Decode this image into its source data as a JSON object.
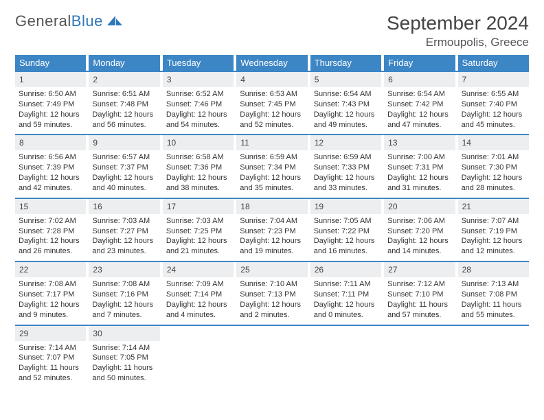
{
  "logo": {
    "text1": "General",
    "text2": "Blue"
  },
  "title": "September 2024",
  "location": "Ermoupolis, Greece",
  "colors": {
    "header_bg": "#3d86c6",
    "header_text": "#ffffff",
    "daynum_bg": "#eceeef",
    "rule": "#3d86c6",
    "logo_blue": "#2f77bb"
  },
  "day_headers": [
    "Sunday",
    "Monday",
    "Tuesday",
    "Wednesday",
    "Thursday",
    "Friday",
    "Saturday"
  ],
  "days": [
    {
      "n": "1",
      "sr": "6:50 AM",
      "ss": "7:49 PM",
      "dl": "12 hours and 59 minutes."
    },
    {
      "n": "2",
      "sr": "6:51 AM",
      "ss": "7:48 PM",
      "dl": "12 hours and 56 minutes."
    },
    {
      "n": "3",
      "sr": "6:52 AM",
      "ss": "7:46 PM",
      "dl": "12 hours and 54 minutes."
    },
    {
      "n": "4",
      "sr": "6:53 AM",
      "ss": "7:45 PM",
      "dl": "12 hours and 52 minutes."
    },
    {
      "n": "5",
      "sr": "6:54 AM",
      "ss": "7:43 PM",
      "dl": "12 hours and 49 minutes."
    },
    {
      "n": "6",
      "sr": "6:54 AM",
      "ss": "7:42 PM",
      "dl": "12 hours and 47 minutes."
    },
    {
      "n": "7",
      "sr": "6:55 AM",
      "ss": "7:40 PM",
      "dl": "12 hours and 45 minutes."
    },
    {
      "n": "8",
      "sr": "6:56 AM",
      "ss": "7:39 PM",
      "dl": "12 hours and 42 minutes."
    },
    {
      "n": "9",
      "sr": "6:57 AM",
      "ss": "7:37 PM",
      "dl": "12 hours and 40 minutes."
    },
    {
      "n": "10",
      "sr": "6:58 AM",
      "ss": "7:36 PM",
      "dl": "12 hours and 38 minutes."
    },
    {
      "n": "11",
      "sr": "6:59 AM",
      "ss": "7:34 PM",
      "dl": "12 hours and 35 minutes."
    },
    {
      "n": "12",
      "sr": "6:59 AM",
      "ss": "7:33 PM",
      "dl": "12 hours and 33 minutes."
    },
    {
      "n": "13",
      "sr": "7:00 AM",
      "ss": "7:31 PM",
      "dl": "12 hours and 31 minutes."
    },
    {
      "n": "14",
      "sr": "7:01 AM",
      "ss": "7:30 PM",
      "dl": "12 hours and 28 minutes."
    },
    {
      "n": "15",
      "sr": "7:02 AM",
      "ss": "7:28 PM",
      "dl": "12 hours and 26 minutes."
    },
    {
      "n": "16",
      "sr": "7:03 AM",
      "ss": "7:27 PM",
      "dl": "12 hours and 23 minutes."
    },
    {
      "n": "17",
      "sr": "7:03 AM",
      "ss": "7:25 PM",
      "dl": "12 hours and 21 minutes."
    },
    {
      "n": "18",
      "sr": "7:04 AM",
      "ss": "7:23 PM",
      "dl": "12 hours and 19 minutes."
    },
    {
      "n": "19",
      "sr": "7:05 AM",
      "ss": "7:22 PM",
      "dl": "12 hours and 16 minutes."
    },
    {
      "n": "20",
      "sr": "7:06 AM",
      "ss": "7:20 PM",
      "dl": "12 hours and 14 minutes."
    },
    {
      "n": "21",
      "sr": "7:07 AM",
      "ss": "7:19 PM",
      "dl": "12 hours and 12 minutes."
    },
    {
      "n": "22",
      "sr": "7:08 AM",
      "ss": "7:17 PM",
      "dl": "12 hours and 9 minutes."
    },
    {
      "n": "23",
      "sr": "7:08 AM",
      "ss": "7:16 PM",
      "dl": "12 hours and 7 minutes."
    },
    {
      "n": "24",
      "sr": "7:09 AM",
      "ss": "7:14 PM",
      "dl": "12 hours and 4 minutes."
    },
    {
      "n": "25",
      "sr": "7:10 AM",
      "ss": "7:13 PM",
      "dl": "12 hours and 2 minutes."
    },
    {
      "n": "26",
      "sr": "7:11 AM",
      "ss": "7:11 PM",
      "dl": "12 hours and 0 minutes."
    },
    {
      "n": "27",
      "sr": "7:12 AM",
      "ss": "7:10 PM",
      "dl": "11 hours and 57 minutes."
    },
    {
      "n": "28",
      "sr": "7:13 AM",
      "ss": "7:08 PM",
      "dl": "11 hours and 55 minutes."
    },
    {
      "n": "29",
      "sr": "7:14 AM",
      "ss": "7:07 PM",
      "dl": "11 hours and 52 minutes."
    },
    {
      "n": "30",
      "sr": "7:14 AM",
      "ss": "7:05 PM",
      "dl": "11 hours and 50 minutes."
    }
  ],
  "labels": {
    "sunrise": "Sunrise: ",
    "sunset": "Sunset: ",
    "daylight": "Daylight: "
  },
  "layout": {
    "start_offset": 0,
    "total_cells": 35
  }
}
